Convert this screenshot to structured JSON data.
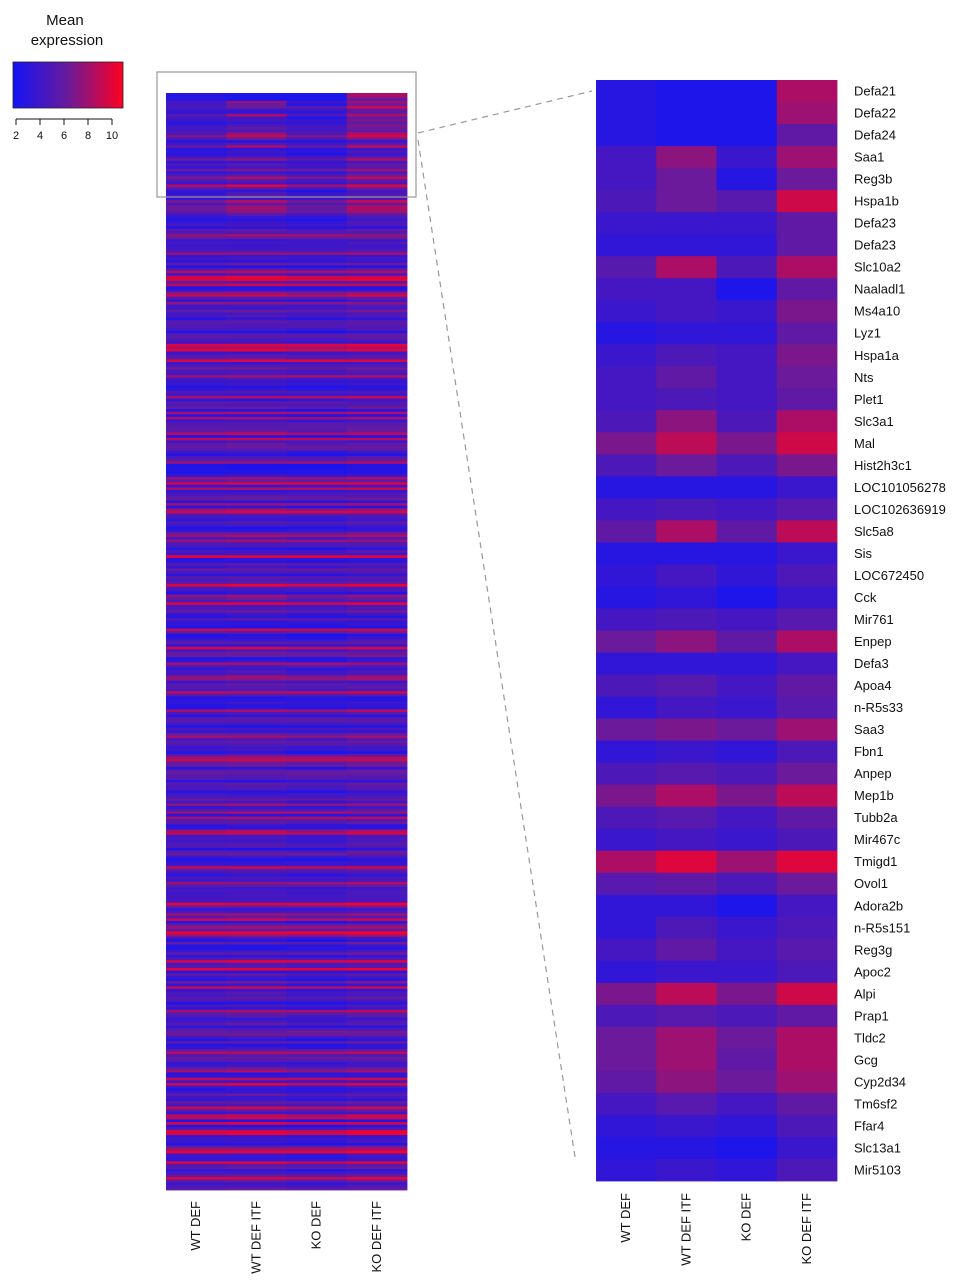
{
  "chart_data": [
    {
      "type": "heatmap",
      "panel": "overview",
      "columns": [
        "WT DEF",
        "WT DEF ITF",
        "KO DEF",
        "KO DEF ITF"
      ],
      "row_count_visible": 420,
      "color_scale": {
        "title": "Mean expression",
        "min": 2,
        "max": 11,
        "ticks": [
          2,
          4,
          6,
          8,
          10
        ],
        "low_color": "#1414f5",
        "mid_color": "#6a1a9a",
        "high_color": "#ff0022"
      }
    },
    {
      "type": "heatmap",
      "panel": "zoom",
      "columns": [
        "WT DEF",
        "WT DEF ITF",
        "KO DEF",
        "KO DEF ITF"
      ],
      "rows": [
        "Defa21",
        "Defa22",
        "Defa24",
        "Saa1",
        "Reg3b",
        "Hspa1b",
        "Defa23",
        "Defa23",
        "Slc10a2",
        "Naaladl1",
        "Ms4a10",
        "Lyz1",
        "Hspa1a",
        "Nts",
        "Plet1",
        "Slc3a1",
        "Mal",
        "Hist2h3c1",
        "LOC101056278",
        "LOC102636919",
        "Slc5a8",
        "Sis",
        "LOC672450",
        "Cck",
        "Mir761",
        "Enpep",
        "Defa3",
        "Apoa4",
        "n-R5s33",
        "Saa3",
        "Fbn1",
        "Anpep",
        "Mep1b",
        "Tubb2a",
        "Mir467c",
        "Tmigd1",
        "Ovol1",
        "Adora2b",
        "n-R5s151",
        "Reg3g",
        "Apoc2",
        "Alpi",
        "Prap1",
        "Tldc2",
        "Gcg",
        "Cyp2d34",
        "Tm6sf2",
        "Ffar4",
        "Slc13a1",
        "Mir5103"
      ],
      "values": [
        [
          3.0,
          2.5,
          2.5,
          8.5
        ],
        [
          3.0,
          2.5,
          2.5,
          8.0
        ],
        [
          3.0,
          2.5,
          2.5,
          6.0
        ],
        [
          4.5,
          7.5,
          4.0,
          8.0
        ],
        [
          4.5,
          6.5,
          3.0,
          6.5
        ],
        [
          5.0,
          6.5,
          5.5,
          9.5
        ],
        [
          4.0,
          4.0,
          4.0,
          6.0
        ],
        [
          3.5,
          3.5,
          3.5,
          6.0
        ],
        [
          5.5,
          8.5,
          5.0,
          8.5
        ],
        [
          4.5,
          4.5,
          2.5,
          6.0
        ],
        [
          4.0,
          4.5,
          4.0,
          7.0
        ],
        [
          3.0,
          3.5,
          3.5,
          6.0
        ],
        [
          4.0,
          5.0,
          4.5,
          7.0
        ],
        [
          4.5,
          6.0,
          4.5,
          6.5
        ],
        [
          4.5,
          5.0,
          4.5,
          6.0
        ],
        [
          5.0,
          7.5,
          5.0,
          8.5
        ],
        [
          7.0,
          9.0,
          7.0,
          9.5
        ],
        [
          5.0,
          6.5,
          5.0,
          7.0
        ],
        [
          3.0,
          3.0,
          3.0,
          4.0
        ],
        [
          4.5,
          5.0,
          4.5,
          5.5
        ],
        [
          6.0,
          8.5,
          6.0,
          9.0
        ],
        [
          3.0,
          3.0,
          3.0,
          4.0
        ],
        [
          3.5,
          4.5,
          3.5,
          5.0
        ],
        [
          3.0,
          3.5,
          2.5,
          4.0
        ],
        [
          4.5,
          5.0,
          4.5,
          5.5
        ],
        [
          6.5,
          7.5,
          6.0,
          8.5
        ],
        [
          3.5,
          3.5,
          3.5,
          4.5
        ],
        [
          5.0,
          5.5,
          4.5,
          6.0
        ],
        [
          3.5,
          4.5,
          4.0,
          5.5
        ],
        [
          6.5,
          7.0,
          6.5,
          8.0
        ],
        [
          3.5,
          4.0,
          3.5,
          5.0
        ],
        [
          5.0,
          5.5,
          5.0,
          6.5
        ],
        [
          7.0,
          8.5,
          7.0,
          9.0
        ],
        [
          5.0,
          5.5,
          4.5,
          6.0
        ],
        [
          4.0,
          4.5,
          4.0,
          5.0
        ],
        [
          8.5,
          10.0,
          8.0,
          10.0
        ],
        [
          5.5,
          6.0,
          5.0,
          6.5
        ],
        [
          3.5,
          3.5,
          2.5,
          4.5
        ],
        [
          3.5,
          5.0,
          4.0,
          5.0
        ],
        [
          4.5,
          6.0,
          4.5,
          5.5
        ],
        [
          3.5,
          4.0,
          4.0,
          5.0
        ],
        [
          7.0,
          9.0,
          7.0,
          9.5
        ],
        [
          5.0,
          5.5,
          5.0,
          6.0
        ],
        [
          6.5,
          8.0,
          6.5,
          8.5
        ],
        [
          6.5,
          8.0,
          6.0,
          8.5
        ],
        [
          6.0,
          7.5,
          6.5,
          8.0
        ],
        [
          4.5,
          5.5,
          4.5,
          6.0
        ],
        [
          3.5,
          4.0,
          3.5,
          5.0
        ],
        [
          3.0,
          3.0,
          2.5,
          4.0
        ],
        [
          3.5,
          4.0,
          3.5,
          5.0
        ]
      ]
    }
  ]
}
